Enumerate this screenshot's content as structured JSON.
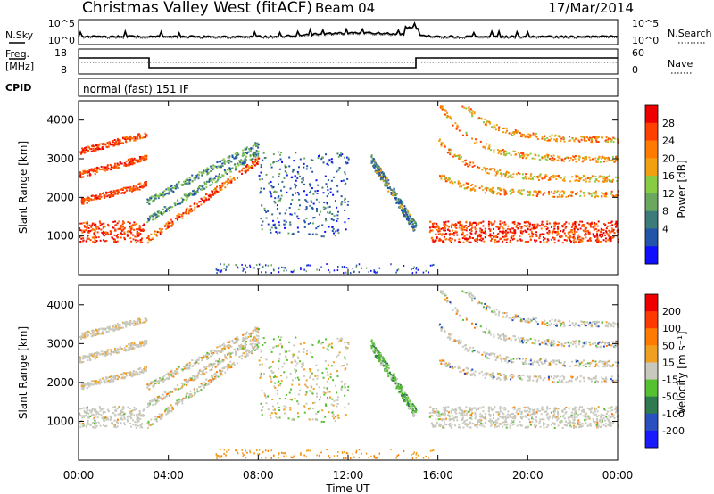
{
  "header": {
    "title": "Christmas Valley West (fitACF)",
    "beam": "Beam 04",
    "date": "17/Mar/2014"
  },
  "noise_panel": {
    "left_label": "N.Sky",
    "right_label": "N.Search",
    "left_ticks": [
      "10^5",
      "10^0"
    ],
    "right_ticks": [
      "10^5",
      "10^0"
    ]
  },
  "freq_panel": {
    "left_label_line1": "Freq.",
    "left_label_line2": "[MHz]",
    "right_label": "Nave",
    "left_ticks": [
      "18",
      "8"
    ],
    "right_ticks": [
      "60",
      "0"
    ]
  },
  "cpid": {
    "label": "CPID",
    "mode_text": "normal (fast) 151 IF"
  },
  "colors": {
    "power_scale": [
      "#1010ff",
      "#2255aa",
      "#3d7a7a",
      "#6aa860",
      "#88cc44",
      "#f0a010",
      "#ff7a00",
      "#ff4000",
      "#ee0000"
    ],
    "velocity_scale": [
      "#1a1aff",
      "#2a4fc0",
      "#2f7a4e",
      "#55c030",
      "#c8c8be",
      "#f0a020",
      "#ff7a00",
      "#ff3a00",
      "#ee0000"
    ]
  },
  "chart_data": [
    {
      "type": "heatmap",
      "name": "power",
      "xlabel": "",
      "ylabel": "Slant Range [km]",
      "colorbar_label": "Power [dB]",
      "colorbar_ticks": [
        "28",
        "24",
        "20",
        "16",
        "12",
        "8",
        "4"
      ],
      "yticks": [
        "4000",
        "3000",
        "2000",
        "1000"
      ],
      "ylim": [
        0,
        4500
      ],
      "xlim_hours": [
        0,
        24
      ],
      "clim": [
        0,
        32
      ]
    },
    {
      "type": "heatmap",
      "name": "velocity",
      "xlabel": "Time UT",
      "ylabel": "Slant Range [km]",
      "colorbar_label": "Velocity [m s⁻¹]",
      "colorbar_ticks": [
        "200",
        "100",
        "50",
        "15",
        "-15",
        "-50",
        "-100",
        "-200"
      ],
      "yticks": [
        "4000",
        "3000",
        "2000",
        "1000"
      ],
      "xticks": [
        "00:00",
        "04:00",
        "08:00",
        "12:00",
        "16:00",
        "20:00",
        "00:00"
      ],
      "ylim": [
        0,
        4500
      ],
      "xlim_hours": [
        0,
        24
      ]
    }
  ]
}
